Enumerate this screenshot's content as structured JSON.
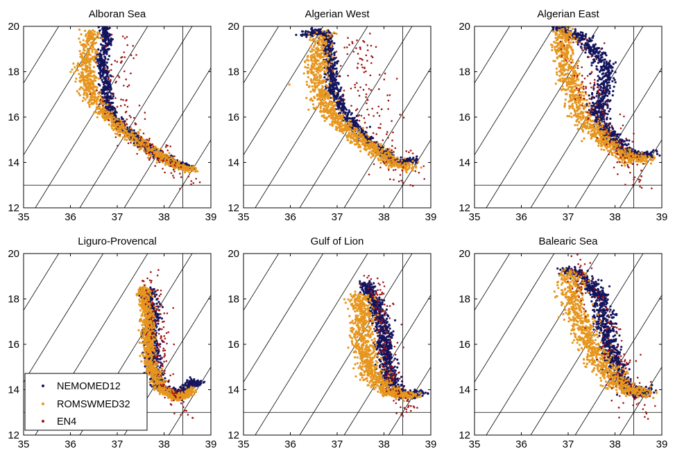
{
  "colors": {
    "NEMOMED12": "#14145e",
    "ROMSWMED32": "#e6961e",
    "EN4": "#a01414"
  },
  "legend": {
    "placement": "lower-left of Liguro-Provencal panel",
    "entries": [
      "NEMOMED12",
      "ROMSWMED32",
      "EN4"
    ]
  },
  "chart_data": [
    {
      "type": "scatter",
      "title": "Alboran Sea",
      "xlim": [
        35,
        39
      ],
      "ylim": [
        12,
        20
      ],
      "xticks": [
        "35",
        "36",
        "37",
        "38",
        "39"
      ],
      "yticks": [
        "12",
        "14",
        "16",
        "18",
        "20"
      ],
      "reference_lines": {
        "salinity": 38.4,
        "temperature": 13.0
      },
      "series": [
        {
          "name": "NEMOMED12",
          "path": [
            [
              36.7,
              20.0
            ],
            [
              36.8,
              19.4
            ],
            [
              36.65,
              18.6
            ],
            [
              36.75,
              17.6
            ],
            [
              36.8,
              16.4
            ],
            [
              37.1,
              15.6
            ],
            [
              37.6,
              14.7
            ],
            [
              38.15,
              14.0
            ],
            [
              38.55,
              13.8
            ]
          ],
          "spread": [
            0.09,
            0.12
          ]
        },
        {
          "name": "ROMSWMED32",
          "path": [
            [
              36.45,
              19.8
            ],
            [
              36.4,
              19.0
            ],
            [
              36.3,
              18.2
            ],
            [
              36.4,
              17.2
            ],
            [
              36.7,
              16.2
            ],
            [
              37.2,
              15.3
            ],
            [
              37.75,
              14.5
            ],
            [
              38.2,
              13.9
            ],
            [
              38.6,
              13.7
            ]
          ],
          "spread": [
            0.14,
            0.12
          ]
        },
        {
          "name": "EN4",
          "path": [
            [
              37.1,
              19.4
            ],
            [
              37.0,
              18.3
            ],
            [
              36.95,
              17.2
            ],
            [
              37.15,
              16.0
            ],
            [
              37.6,
              14.8
            ],
            [
              38.05,
              13.9
            ],
            [
              38.4,
              13.3
            ],
            [
              38.45,
              12.8
            ]
          ],
          "spread": [
            0.22,
            0.28
          ]
        }
      ]
    },
    {
      "type": "scatter",
      "title": "Algerian West",
      "xlim": [
        35,
        39
      ],
      "ylim": [
        12,
        20
      ],
      "xticks": [
        "35",
        "36",
        "37",
        "38",
        "39"
      ],
      "yticks": [
        "12",
        "14",
        "16",
        "18",
        "20"
      ],
      "reference_lines": {
        "salinity": 38.4,
        "temperature": 13.0
      },
      "series": [
        {
          "name": "NEMOMED12",
          "path": [
            [
              36.3,
              19.6
            ],
            [
              36.55,
              19.8
            ],
            [
              36.8,
              19.6
            ],
            [
              36.85,
              18.5
            ],
            [
              36.9,
              17.2
            ],
            [
              37.2,
              16.0
            ],
            [
              37.7,
              14.9
            ],
            [
              38.25,
              14.0
            ],
            [
              38.7,
              14.1
            ]
          ],
          "spread": [
            0.1,
            0.12
          ]
        },
        {
          "name": "ROMSWMED32",
          "path": [
            [
              36.7,
              19.7
            ],
            [
              36.6,
              18.7
            ],
            [
              36.55,
              17.6
            ],
            [
              36.7,
              16.6
            ],
            [
              37.1,
              15.6
            ],
            [
              37.7,
              14.7
            ],
            [
              38.25,
              13.9
            ],
            [
              38.6,
              13.8
            ]
          ],
          "spread": [
            0.18,
            0.15
          ]
        },
        {
          "name": "EN4",
          "path": [
            [
              37.4,
              19.6
            ],
            [
              37.5,
              18.5
            ],
            [
              37.6,
              17.2
            ],
            [
              37.8,
              16.0
            ],
            [
              38.1,
              14.9
            ],
            [
              38.35,
              13.8
            ],
            [
              38.45,
              12.9
            ]
          ],
          "spread": [
            0.28,
            0.3
          ]
        }
      ]
    },
    {
      "type": "scatter",
      "title": "Algerian East",
      "xlim": [
        35,
        39
      ],
      "ylim": [
        12,
        20
      ],
      "xticks": [
        "35",
        "36",
        "37",
        "38",
        "39"
      ],
      "yticks": [
        "12",
        "14",
        "16",
        "18",
        "20"
      ],
      "reference_lines": {
        "salinity": 38.4,
        "temperature": 13.0
      },
      "series": [
        {
          "name": "NEMOMED12",
          "path": [
            [
              36.8,
              19.9
            ],
            [
              37.3,
              19.5
            ],
            [
              37.8,
              18.3
            ],
            [
              37.8,
              17.3
            ],
            [
              37.6,
              16.3
            ],
            [
              37.85,
              15.3
            ],
            [
              38.35,
              14.3
            ],
            [
              38.8,
              14.4
            ]
          ],
          "spread": [
            0.14,
            0.14
          ]
        },
        {
          "name": "ROMSWMED32",
          "path": [
            [
              36.9,
              19.9
            ],
            [
              36.9,
              19.0
            ],
            [
              37.0,
              18.0
            ],
            [
              37.1,
              17.0
            ],
            [
              37.3,
              16.0
            ],
            [
              37.75,
              15.0
            ],
            [
              38.3,
              14.1
            ],
            [
              38.7,
              14.2
            ]
          ],
          "spread": [
            0.18,
            0.16
          ]
        },
        {
          "name": "EN4",
          "path": [
            [
              37.1,
              19.6
            ],
            [
              37.2,
              18.5
            ],
            [
              37.4,
              17.3
            ],
            [
              37.7,
              16.0
            ],
            [
              38.1,
              14.8
            ],
            [
              38.4,
              13.6
            ],
            [
              38.45,
              12.9
            ]
          ],
          "spread": [
            0.22,
            0.3
          ]
        }
      ]
    },
    {
      "type": "scatter",
      "title": "Liguro-Provencal",
      "xlim": [
        35,
        39
      ],
      "ylim": [
        12,
        20
      ],
      "xticks": [
        "35",
        "36",
        "37",
        "38",
        "39"
      ],
      "yticks": [
        "12",
        "14",
        "16",
        "18",
        "20"
      ],
      "reference_lines": {
        "salinity": 38.4,
        "temperature": 13.0
      },
      "series": [
        {
          "name": "NEMOMED12",
          "path": [
            [
              37.65,
              18.4
            ],
            [
              37.75,
              17.4
            ],
            [
              37.7,
              16.4
            ],
            [
              37.75,
              15.2
            ],
            [
              37.9,
              14.1
            ],
            [
              38.3,
              13.8
            ],
            [
              38.7,
              14.4
            ]
          ],
          "spread": [
            0.12,
            0.12
          ]
        },
        {
          "name": "ROMSWMED32",
          "path": [
            [
              37.55,
              18.5
            ],
            [
              37.65,
              17.4
            ],
            [
              37.65,
              16.3
            ],
            [
              37.7,
              15.2
            ],
            [
              37.9,
              14.1
            ],
            [
              38.3,
              13.6
            ],
            [
              38.6,
              14.0
            ]
          ],
          "spread": [
            0.1,
            0.12
          ]
        },
        {
          "name": "EN4",
          "path": [
            [
              37.75,
              19.1
            ],
            [
              37.85,
              18.0
            ],
            [
              37.9,
              16.8
            ],
            [
              37.95,
              15.5
            ],
            [
              38.1,
              14.2
            ],
            [
              38.4,
              13.2
            ],
            [
              38.45,
              12.8
            ]
          ],
          "spread": [
            0.13,
            0.25
          ]
        }
      ]
    },
    {
      "type": "scatter",
      "title": "Gulf of Lion",
      "xlim": [
        35,
        39
      ],
      "ylim": [
        12,
        20
      ],
      "xticks": [
        "35",
        "36",
        "37",
        "38",
        "39"
      ],
      "yticks": [
        "12",
        "14",
        "16",
        "18",
        "20"
      ],
      "reference_lines": {
        "salinity": 38.4,
        "temperature": 13.0
      },
      "series": [
        {
          "name": "NEMOMED12",
          "path": [
            [
              37.6,
              18.7
            ],
            [
              37.85,
              17.6
            ],
            [
              38.0,
              16.5
            ],
            [
              38.05,
              15.2
            ],
            [
              38.2,
              14.1
            ],
            [
              38.5,
              13.7
            ],
            [
              38.75,
              13.9
            ]
          ],
          "spread": [
            0.13,
            0.12
          ]
        },
        {
          "name": "ROMSWMED32",
          "path": [
            [
              37.45,
              18.2
            ],
            [
              37.55,
              17.1
            ],
            [
              37.55,
              15.9
            ],
            [
              37.7,
              14.8
            ],
            [
              38.1,
              13.9
            ],
            [
              38.6,
              13.7
            ]
          ],
          "spread": [
            0.18,
            0.15
          ]
        },
        {
          "name": "EN4",
          "path": [
            [
              37.7,
              19.0
            ],
            [
              37.9,
              17.8
            ],
            [
              38.0,
              16.6
            ],
            [
              38.1,
              15.3
            ],
            [
              38.25,
              14.1
            ],
            [
              38.42,
              13.2
            ],
            [
              38.45,
              12.8
            ]
          ],
          "spread": [
            0.14,
            0.25
          ]
        }
      ]
    },
    {
      "type": "scatter",
      "title": "Balearic Sea",
      "xlim": [
        35,
        39
      ],
      "ylim": [
        12,
        20
      ],
      "xticks": [
        "35",
        "36",
        "37",
        "38",
        "39"
      ],
      "yticks": [
        "12",
        "14",
        "16",
        "18",
        "20"
      ],
      "reference_lines": {
        "salinity": 38.4,
        "temperature": 13.0
      },
      "series": [
        {
          "name": "NEMOMED12",
          "path": [
            [
              36.95,
              19.3
            ],
            [
              37.3,
              19.0
            ],
            [
              37.7,
              18.0
            ],
            [
              37.8,
              16.8
            ],
            [
              37.9,
              15.6
            ],
            [
              38.1,
              14.5
            ],
            [
              38.45,
              13.8
            ],
            [
              38.75,
              14.0
            ]
          ],
          "spread": [
            0.16,
            0.14
          ]
        },
        {
          "name": "ROMSWMED32",
          "path": [
            [
              37.0,
              19.2
            ],
            [
              37.1,
              18.2
            ],
            [
              37.25,
              17.1
            ],
            [
              37.45,
              16.0
            ],
            [
              37.75,
              15.0
            ],
            [
              38.15,
              14.1
            ],
            [
              38.6,
              13.8
            ]
          ],
          "spread": [
            0.22,
            0.16
          ]
        },
        {
          "name": "EN4",
          "path": [
            [
              37.2,
              19.8
            ],
            [
              37.4,
              18.6
            ],
            [
              37.6,
              17.4
            ],
            [
              37.85,
              16.2
            ],
            [
              38.1,
              15.0
            ],
            [
              38.35,
              13.8
            ],
            [
              38.45,
              12.9
            ]
          ],
          "spread": [
            0.2,
            0.28
          ]
        }
      ]
    }
  ]
}
